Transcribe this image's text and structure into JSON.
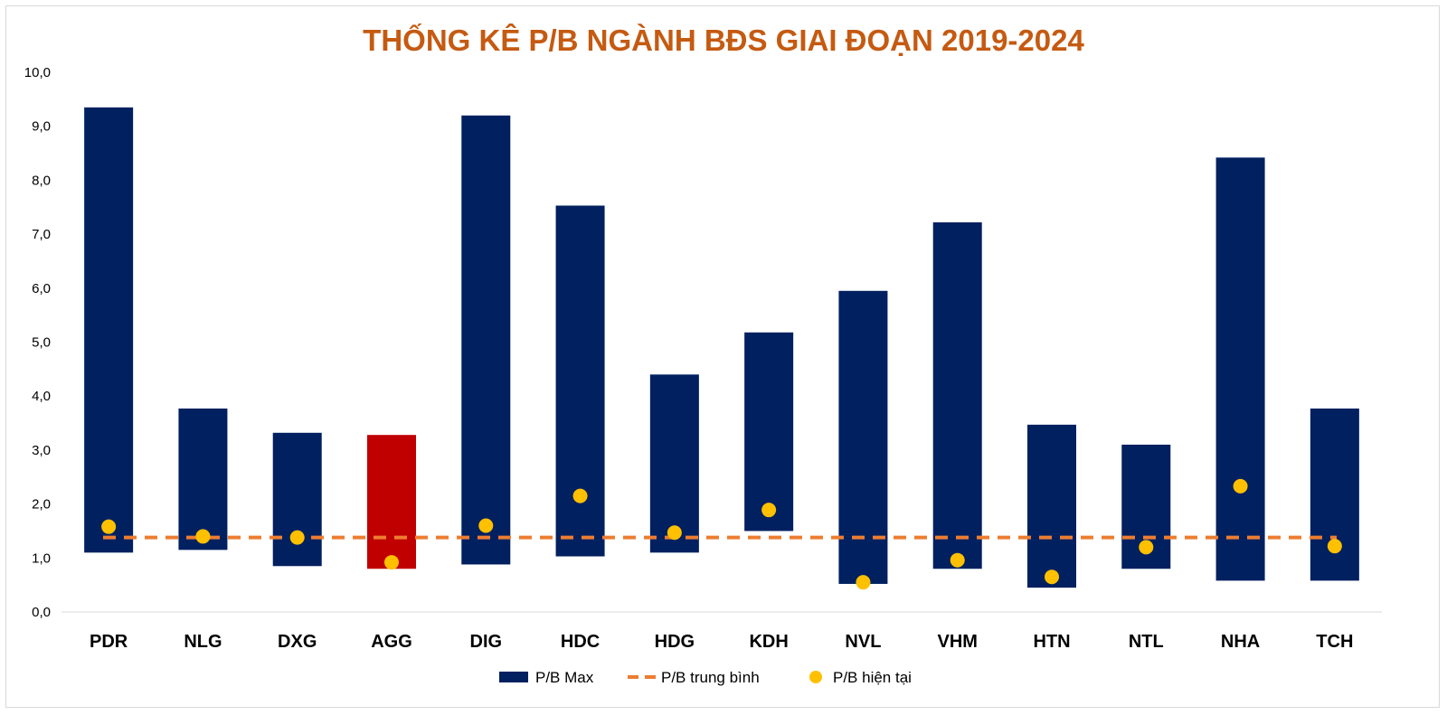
{
  "chart_data": {
    "type": "bar",
    "title": "THỐNG KÊ P/B NGÀNH BĐS GIAI ĐOẠN 2019-2024",
    "xlabel": "",
    "ylabel": "",
    "ylim": [
      0,
      10
    ],
    "yticks": [
      "0,0",
      "1,0",
      "2,0",
      "3,0",
      "4,0",
      "5,0",
      "6,0",
      "7,0",
      "8,0",
      "9,0",
      "10,0"
    ],
    "grid": false,
    "legend_position": "bottom",
    "categories": [
      "PDR",
      "NLG",
      "DXG",
      "AGG",
      "DIG",
      "HDC",
      "HDG",
      "KDH",
      "NVL",
      "VHM",
      "HTN",
      "NTL",
      "NHA",
      "TCH"
    ],
    "series": [
      {
        "name": "P/B Max",
        "kind": "floating-bar",
        "color": "#002060",
        "highlight_color": "#c00000",
        "highlight_index": 3,
        "low": [
          1.1,
          1.15,
          0.85,
          0.8,
          0.88,
          1.03,
          1.1,
          1.5,
          0.52,
          0.8,
          0.45,
          0.8,
          0.58,
          0.58
        ],
        "high": [
          9.35,
          3.77,
          3.32,
          3.28,
          9.2,
          7.53,
          4.4,
          5.18,
          5.95,
          7.22,
          3.47,
          3.1,
          8.42,
          3.77
        ]
      },
      {
        "name": "P/B trung bình",
        "kind": "dashed-line",
        "color": "#ed7d31",
        "value": 1.38
      },
      {
        "name": "P/B hiện tại",
        "kind": "scatter",
        "color": "#ffc000",
        "values": [
          1.58,
          1.4,
          1.38,
          0.92,
          1.6,
          2.15,
          1.47,
          1.89,
          0.55,
          0.96,
          0.65,
          1.2,
          2.33,
          1.22
        ]
      }
    ]
  }
}
